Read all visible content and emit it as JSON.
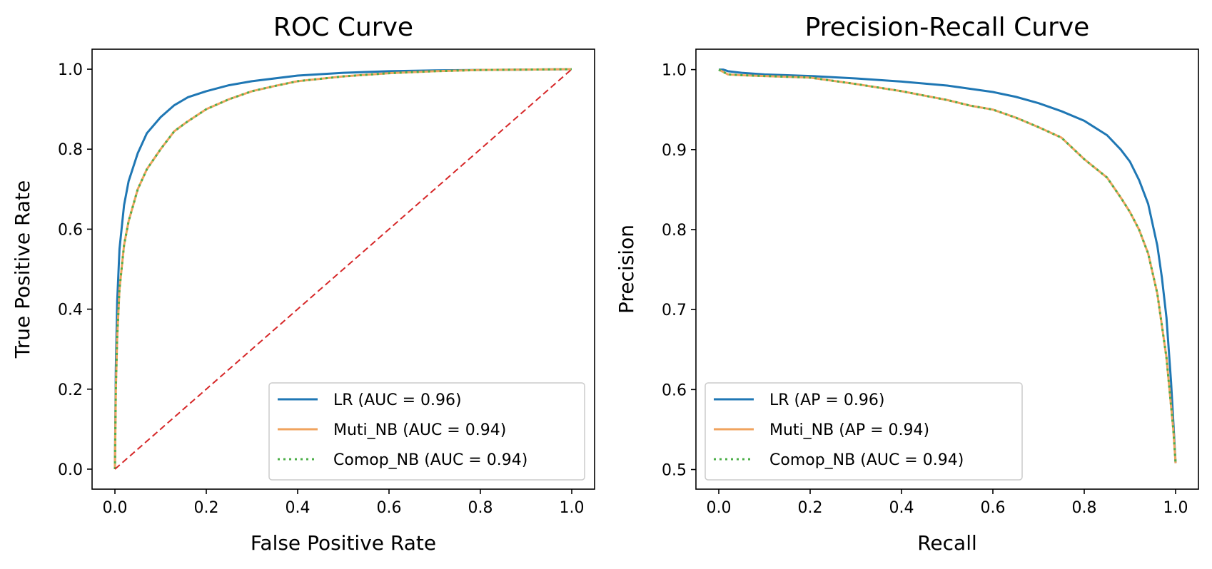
{
  "chart_data": [
    {
      "type": "line",
      "title": "ROC Curve",
      "xlabel": "False Positive Rate",
      "ylabel": "True Positive Rate",
      "xlim": [
        -0.05,
        1.05
      ],
      "ylim": [
        -0.05,
        1.05
      ],
      "xticks": [
        "0.0",
        "0.2",
        "0.4",
        "0.6",
        "0.8",
        "1.0"
      ],
      "yticks": [
        "0.0",
        "0.2",
        "0.4",
        "0.6",
        "0.8",
        "1.0"
      ],
      "grid": false,
      "legend_position": "lower-right",
      "series": [
        {
          "name": "LR (AUC = 0.96)",
          "color": "#1f77b4",
          "style": "solid",
          "x": [
            0,
            0.002,
            0.005,
            0.01,
            0.02,
            0.03,
            0.05,
            0.07,
            0.1,
            0.13,
            0.16,
            0.2,
            0.25,
            0.3,
            0.4,
            0.5,
            0.6,
            0.7,
            0.8,
            0.9,
            1.0
          ],
          "y": [
            0,
            0.25,
            0.42,
            0.55,
            0.66,
            0.72,
            0.79,
            0.84,
            0.88,
            0.91,
            0.93,
            0.945,
            0.96,
            0.97,
            0.984,
            0.991,
            0.995,
            0.997,
            0.998,
            0.999,
            1.0
          ]
        },
        {
          "name": "Muti_NB (AUC = 0.94)",
          "color": "#f0a35e",
          "style": "solid",
          "x": [
            0,
            0.002,
            0.005,
            0.01,
            0.02,
            0.03,
            0.05,
            0.07,
            0.1,
            0.13,
            0.16,
            0.2,
            0.25,
            0.3,
            0.35,
            0.4,
            0.5,
            0.6,
            0.7,
            0.8,
            0.9,
            1.0
          ],
          "y": [
            0,
            0.2,
            0.33,
            0.45,
            0.56,
            0.62,
            0.7,
            0.75,
            0.8,
            0.845,
            0.87,
            0.9,
            0.925,
            0.945,
            0.958,
            0.97,
            0.982,
            0.99,
            0.995,
            0.998,
            0.999,
            1.0
          ]
        },
        {
          "name": "Comop_NB (AUC = 0.94)",
          "color": "#4daf4a",
          "style": "dotted",
          "x": [
            0,
            0.002,
            0.005,
            0.01,
            0.02,
            0.03,
            0.05,
            0.07,
            0.1,
            0.13,
            0.16,
            0.2,
            0.25,
            0.3,
            0.35,
            0.4,
            0.5,
            0.6,
            0.7,
            0.8,
            0.9,
            1.0
          ],
          "y": [
            0,
            0.2,
            0.33,
            0.45,
            0.56,
            0.62,
            0.7,
            0.75,
            0.8,
            0.845,
            0.87,
            0.9,
            0.925,
            0.945,
            0.958,
            0.97,
            0.982,
            0.99,
            0.995,
            0.998,
            0.999,
            1.0
          ]
        },
        {
          "color": "#d62728",
          "style": "dashed",
          "x": [
            0,
            1
          ],
          "y": [
            0,
            1
          ]
        }
      ]
    },
    {
      "type": "line",
      "title": "Precision-Recall Curve",
      "xlabel": "Recall",
      "ylabel": "Precision",
      "xlim": [
        -0.05,
        1.05
      ],
      "ylim": [
        0.4755,
        1.0255
      ],
      "xticks": [
        "0.0",
        "0.2",
        "0.4",
        "0.6",
        "0.8",
        "1.0"
      ],
      "yticks": [
        "0.5",
        "0.6",
        "0.7",
        "0.8",
        "0.9",
        "1.0"
      ],
      "grid": false,
      "legend_position": "lower-left",
      "series": [
        {
          "name": "LR (AP = 0.96)",
          "color": "#1f77b4",
          "style": "solid",
          "x": [
            0,
            0.01,
            0.02,
            0.05,
            0.1,
            0.2,
            0.3,
            0.4,
            0.5,
            0.55,
            0.6,
            0.65,
            0.7,
            0.75,
            0.8,
            0.85,
            0.88,
            0.9,
            0.92,
            0.94,
            0.96,
            0.97,
            0.98,
            0.99,
            0.995,
            1.0
          ],
          "y": [
            1.0,
            1.0,
            0.998,
            0.996,
            0.994,
            0.992,
            0.989,
            0.985,
            0.98,
            0.976,
            0.972,
            0.966,
            0.958,
            0.948,
            0.936,
            0.918,
            0.9,
            0.885,
            0.862,
            0.832,
            0.78,
            0.74,
            0.69,
            0.61,
            0.56,
            0.508
          ]
        },
        {
          "name": "Muti_NB (AP = 0.94)",
          "color": "#f0a35e",
          "style": "solid",
          "x": [
            0,
            0.01,
            0.02,
            0.05,
            0.1,
            0.2,
            0.3,
            0.4,
            0.5,
            0.55,
            0.6,
            0.65,
            0.7,
            0.75,
            0.8,
            0.85,
            0.88,
            0.9,
            0.92,
            0.94,
            0.96,
            0.97,
            0.98,
            0.99,
            0.995,
            1.0
          ],
          "y": [
            1.0,
            0.997,
            0.994,
            0.993,
            0.992,
            0.99,
            0.982,
            0.973,
            0.962,
            0.955,
            0.95,
            0.94,
            0.928,
            0.915,
            0.888,
            0.865,
            0.84,
            0.822,
            0.8,
            0.77,
            0.72,
            0.68,
            0.64,
            0.58,
            0.55,
            0.508
          ]
        },
        {
          "name": "Comop_NB (AUC = 0.94)",
          "color": "#4daf4a",
          "style": "dotted",
          "x": [
            0,
            0.01,
            0.02,
            0.05,
            0.1,
            0.2,
            0.3,
            0.4,
            0.5,
            0.55,
            0.6,
            0.65,
            0.7,
            0.75,
            0.8,
            0.85,
            0.88,
            0.9,
            0.92,
            0.94,
            0.96,
            0.97,
            0.98,
            0.99,
            0.995,
            1.0
          ],
          "y": [
            1.0,
            0.997,
            0.994,
            0.993,
            0.992,
            0.99,
            0.982,
            0.973,
            0.962,
            0.955,
            0.95,
            0.94,
            0.928,
            0.915,
            0.888,
            0.865,
            0.84,
            0.822,
            0.8,
            0.77,
            0.72,
            0.68,
            0.64,
            0.58,
            0.55,
            0.508
          ]
        }
      ]
    }
  ]
}
